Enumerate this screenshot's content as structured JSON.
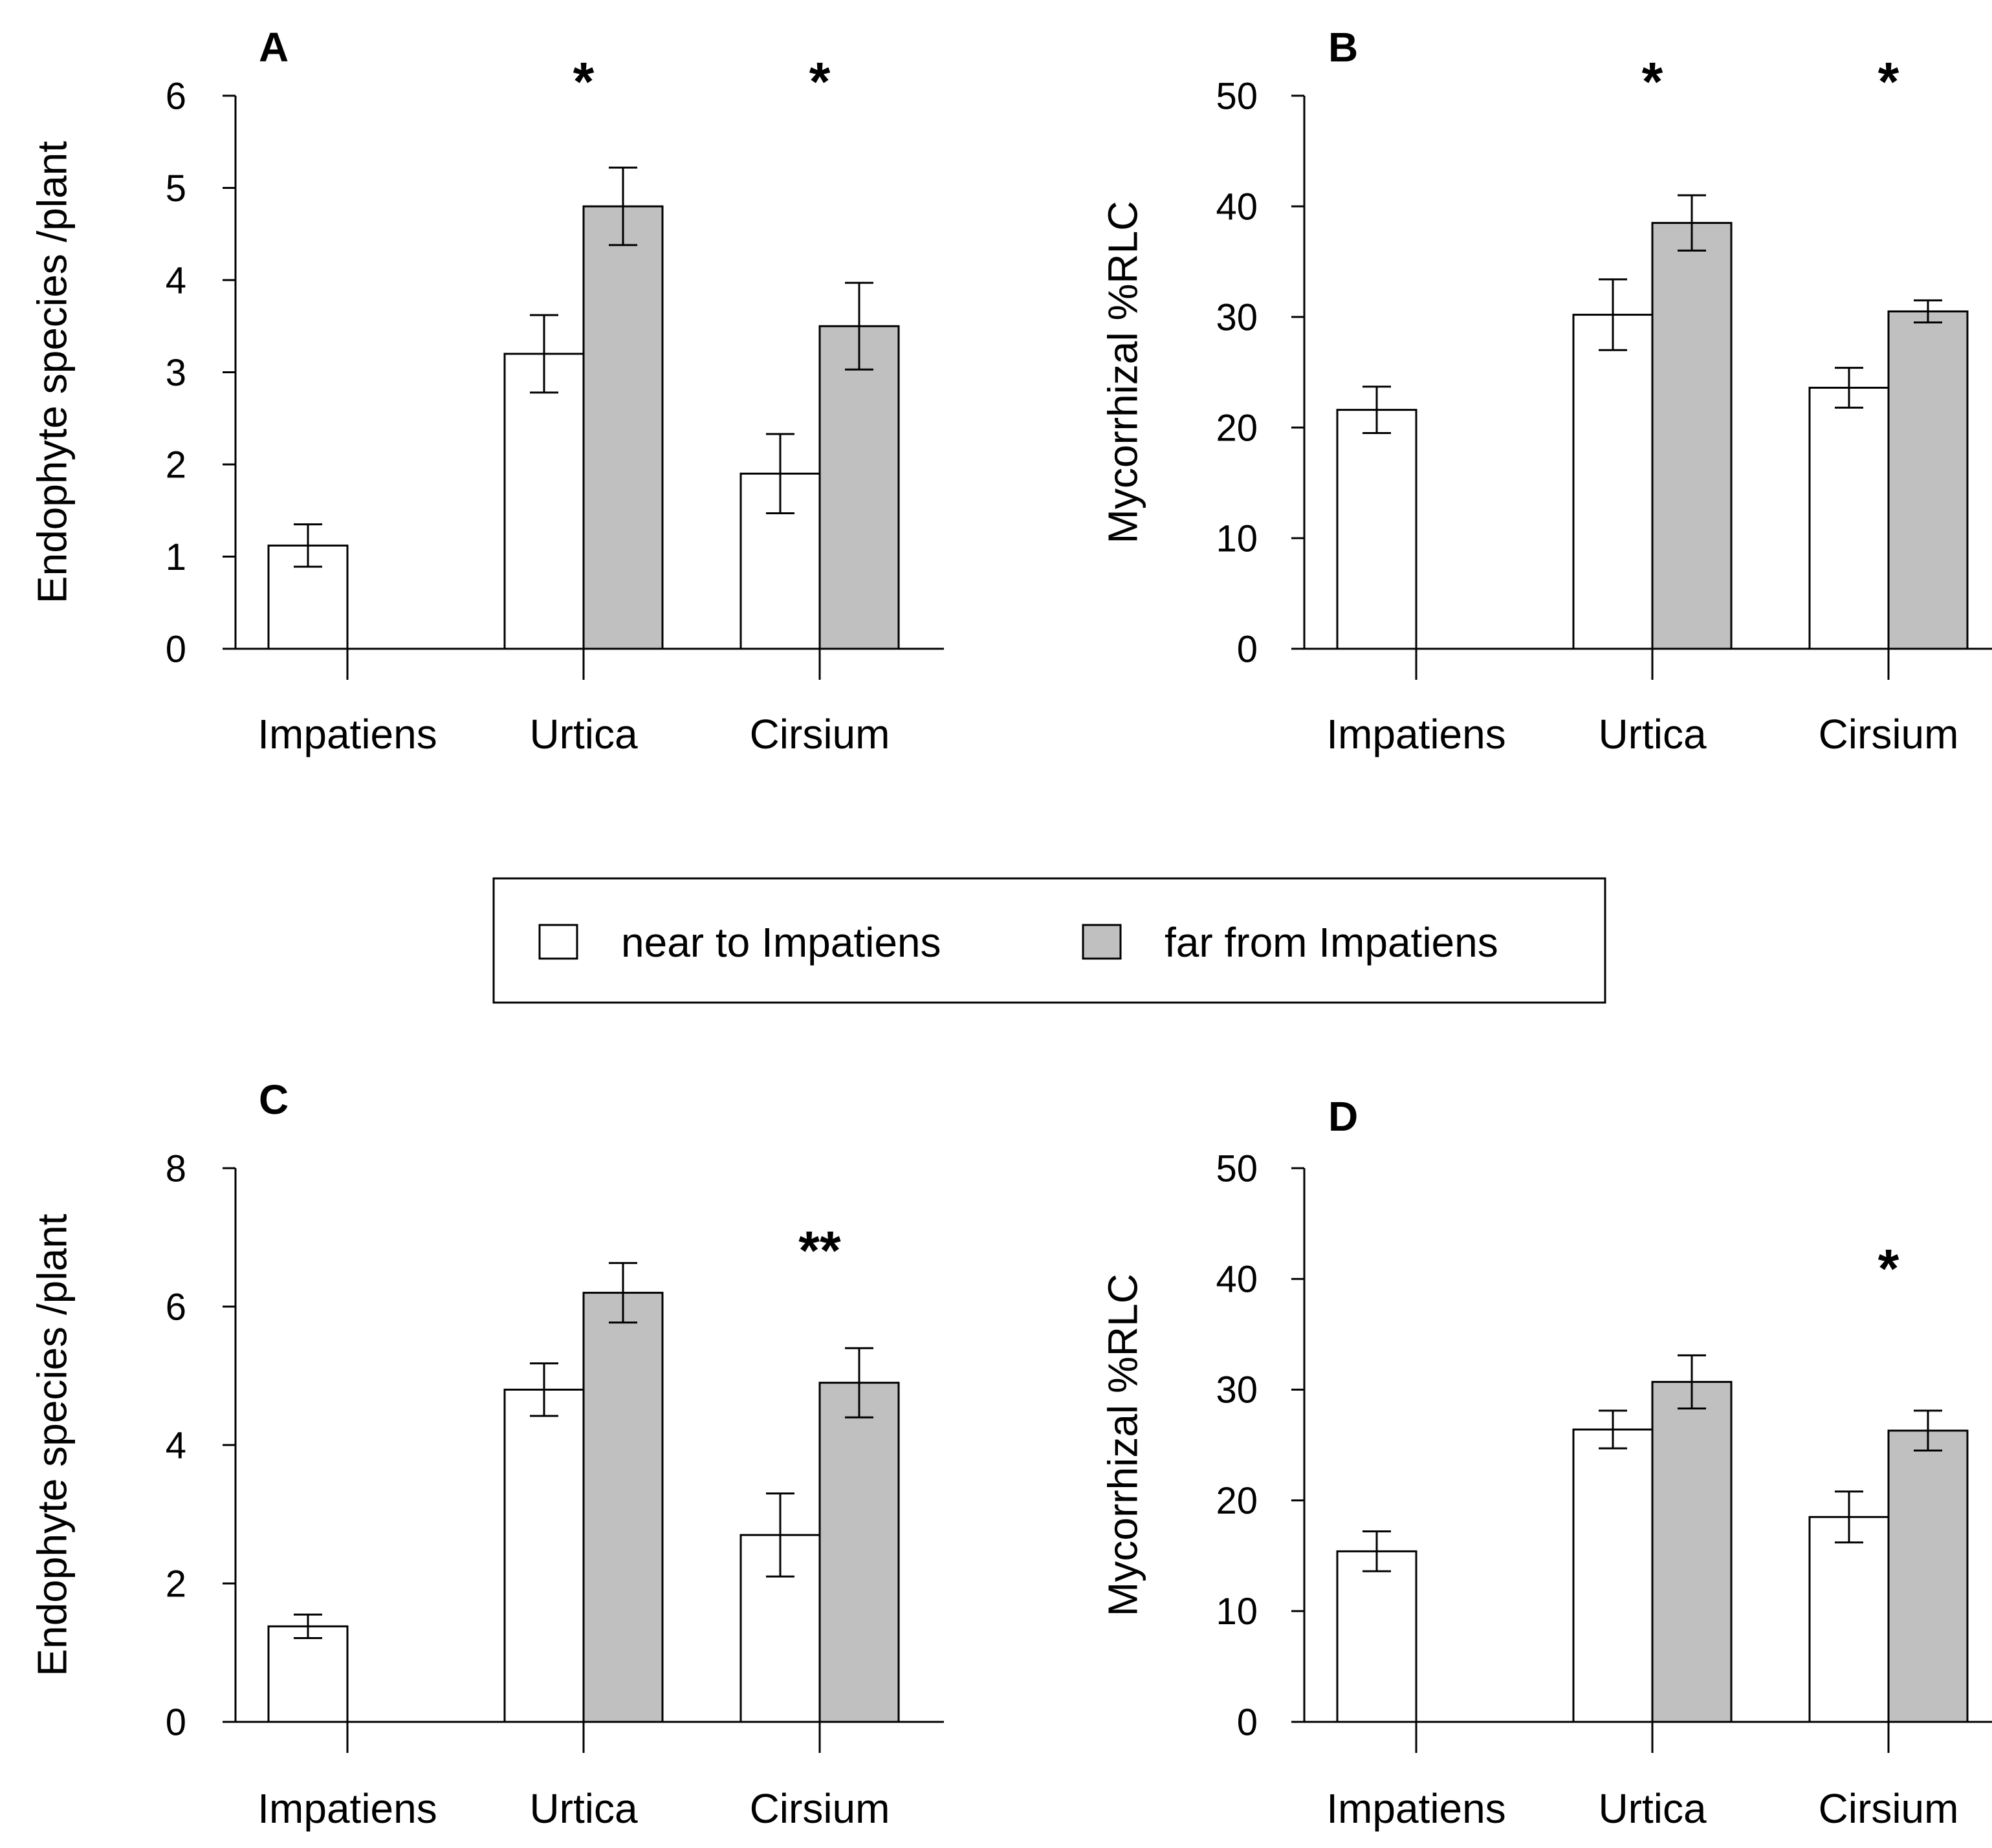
{
  "legend": {
    "items": [
      {
        "label": "near to Impatiens",
        "color": "#ffffff"
      },
      {
        "label": "far from Impatiens",
        "color": "#c0c0c0"
      }
    ]
  },
  "colors": {
    "near": "#ffffff",
    "far": "#c0c0c0",
    "stroke": "#000000"
  },
  "chart_data": [
    {
      "panel": "A",
      "type": "bar",
      "title": "",
      "ylabel": "Endophyte species /plant",
      "xlabel": "",
      "ylim": [
        0,
        6
      ],
      "yticks": [
        0,
        1,
        2,
        3,
        4,
        5,
        6
      ],
      "categories": [
        "Impatiens",
        "Urtica",
        "Cirsium"
      ],
      "series": [
        {
          "name": "near to Impatiens",
          "values": [
            1.12,
            3.2,
            1.9
          ],
          "errors": [
            0.23,
            0.42,
            0.43
          ]
        },
        {
          "name": "far from Impatiens",
          "values": [
            null,
            4.8,
            3.5
          ],
          "errors": [
            null,
            0.42,
            0.47
          ]
        }
      ],
      "significance": [
        "",
        "*",
        "*"
      ],
      "grid": false,
      "legend": "bottom-center"
    },
    {
      "panel": "B",
      "type": "bar",
      "title": "",
      "ylabel": "Mycorrhizal %RLC",
      "xlabel": "",
      "ylim": [
        0,
        50
      ],
      "yticks": [
        0,
        10,
        20,
        30,
        40,
        50
      ],
      "categories": [
        "Impatiens",
        "Urtica",
        "Cirsium"
      ],
      "series": [
        {
          "name": "near to Impatiens",
          "values": [
            21.6,
            30.2,
            23.6
          ],
          "errors": [
            2.1,
            3.2,
            1.8
          ]
        },
        {
          "name": "far from Impatiens",
          "values": [
            null,
            38.5,
            30.5
          ],
          "errors": [
            null,
            2.5,
            1.0
          ]
        }
      ],
      "significance": [
        "",
        "*",
        "*"
      ],
      "grid": false,
      "legend": "bottom-center"
    },
    {
      "panel": "C",
      "type": "bar",
      "title": "",
      "ylabel": "Endophyte species /plant",
      "xlabel": "",
      "ylim": [
        0,
        8
      ],
      "yticks": [
        0,
        2,
        4,
        6,
        8
      ],
      "categories": [
        "Impatiens",
        "Urtica",
        "Cirsium"
      ],
      "series": [
        {
          "name": "near to Impatiens",
          "values": [
            1.38,
            4.8,
            2.7
          ],
          "errors": [
            0.17,
            0.38,
            0.6
          ]
        },
        {
          "name": "far from Impatiens",
          "values": [
            null,
            6.2,
            4.9
          ],
          "errors": [
            null,
            0.43,
            0.5
          ]
        }
      ],
      "significance": [
        "",
        "",
        "**"
      ],
      "grid": false,
      "legend": "top-center"
    },
    {
      "panel": "D",
      "type": "bar",
      "title": "",
      "ylabel": "Mycorrhizal %RLC",
      "xlabel": "",
      "ylim": [
        0,
        50
      ],
      "yticks": [
        0,
        10,
        20,
        30,
        40,
        50
      ],
      "categories": [
        "Impatiens",
        "Urtica",
        "Cirsium"
      ],
      "series": [
        {
          "name": "near to Impatiens",
          "values": [
            15.4,
            26.4,
            18.5
          ],
          "errors": [
            1.8,
            1.7,
            2.3
          ]
        },
        {
          "name": "far from Impatiens",
          "values": [
            null,
            30.7,
            26.3
          ],
          "errors": [
            null,
            2.4,
            1.8
          ]
        }
      ],
      "significance": [
        "",
        "",
        "*"
      ],
      "grid": false,
      "legend": "top-center"
    }
  ]
}
